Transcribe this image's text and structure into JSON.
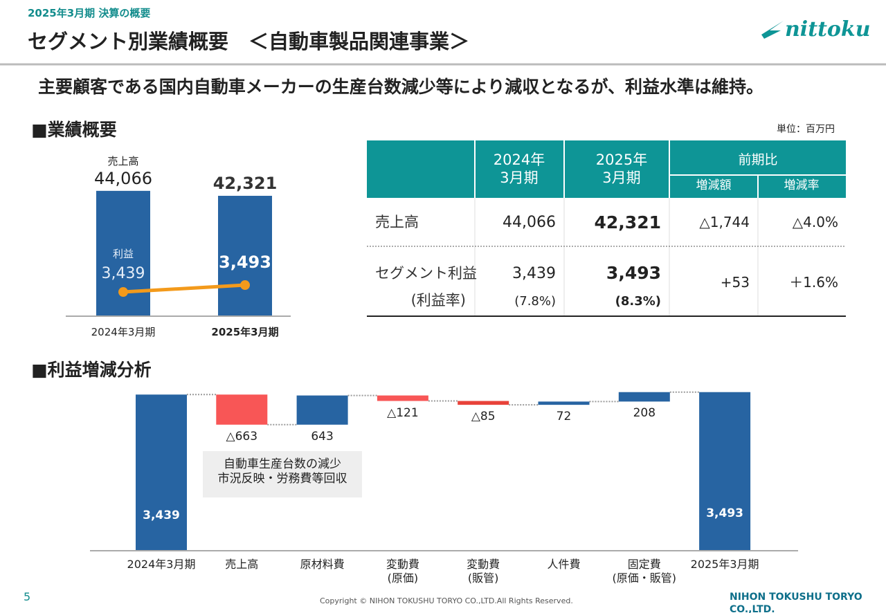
{
  "header": {
    "period": "2025年3月期 決算の概要",
    "title": "セグメント別業績概要　＜自動車製品関連事業＞",
    "logo": "nittoku",
    "headline": "主要顧客である国内自動車メーカーの生産台数減少等により減収となるが、利益水準は維持。"
  },
  "section1": "■業績概要",
  "unit": "単位：百万円",
  "section2": "■利益増減分析",
  "table": {
    "header": [
      "2024年\n3月期",
      "2025年\n3月期",
      "前期比",
      "増減額",
      "増減率"
    ],
    "rows": [
      [
        "売上高",
        "44,066",
        "42,321",
        "△1,744",
        "△4.0%"
      ],
      [
        "セグメント利益",
        "3,439",
        "3,493",
        "+53",
        "＋1.6%"
      ]
    ],
    "sub_row": [
      "(利益率)",
      "(7.8%)",
      "(8.3%)"
    ]
  },
  "chart_data": [
    {
      "type": "bar-line",
      "categories": [
        "2024年3月期",
        "2025年3月期"
      ],
      "ylim": [
        0,
        45000
      ],
      "y2lim": [
        3250,
        4250
      ],
      "series": [
        {
          "name": "売上高",
          "color": "#2764a2",
          "values": [
            44066,
            42321
          ],
          "value_labels": [
            "44,066",
            "42,321"
          ]
        },
        {
          "name": "利益",
          "color": "#f39a1b",
          "axis": "y2",
          "values": [
            3439,
            3493
          ],
          "value_labels": [
            "3,439",
            "3,493"
          ]
        }
      ]
    },
    {
      "type": "waterfall",
      "categories": [
        "2024年3月期",
        "売上高",
        "原材料費",
        "変動費\n(原価)",
        "変動費\n(販管)",
        "人件費",
        "固定費\n(原価・販管)",
        "2025年3月期"
      ],
      "values": [
        3439,
        -663,
        643,
        -121,
        -85,
        72,
        208,
        3493
      ],
      "value_labels": [
        "3,439",
        "△663",
        "643",
        "△121",
        "△85",
        "72",
        "208",
        "3,493"
      ],
      "colors": [
        "#2764a2",
        "#f85656",
        "#2764a2",
        "#f85656",
        "#e8433a",
        "#2764a2",
        "#2764a2",
        "#2764a2"
      ],
      "ylim": [
        0,
        3550
      ],
      "annotation": "自動車生産台数の減少\n市況反映・労務費等回収"
    }
  ],
  "footer": {
    "page": "5",
    "copyright": "Copyright © NIHON TOKUSHU TORYO CO.,LTD.All Rights Reserved.",
    "company": "NIHON TOKUSHU TORYO CO.,LTD."
  }
}
